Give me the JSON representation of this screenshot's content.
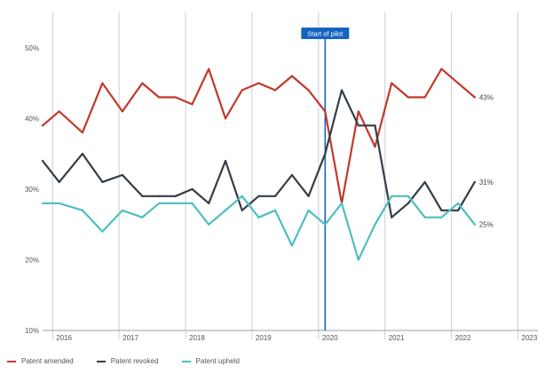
{
  "chart_data": {
    "type": "line",
    "x": [
      2015.85,
      2016.1,
      2016.45,
      2016.75,
      2017.05,
      2017.35,
      2017.6,
      2017.85,
      2018.1,
      2018.35,
      2018.6,
      2018.85,
      2019.1,
      2019.35,
      2019.6,
      2019.85,
      2020.1,
      2020.35,
      2020.6,
      2020.85,
      2021.1,
      2021.35,
      2021.6,
      2021.85,
      2022.1,
      2022.35,
      2022.45
    ],
    "series": [
      {
        "name": "Patent amended",
        "color": "#c0392b",
        "values": [
          39,
          41,
          38,
          45,
          41,
          45,
          43,
          43,
          42,
          47,
          40,
          44,
          45,
          44,
          46,
          44,
          41,
          28,
          41,
          36,
          45,
          43,
          43,
          47,
          45,
          43,
          null
        ],
        "end_label": "43%"
      },
      {
        "name": "Patent revoked",
        "color": "#333d47",
        "values": [
          34,
          31,
          35,
          31,
          32,
          29,
          29,
          29,
          30,
          28,
          34,
          27,
          29,
          29,
          32,
          29,
          35,
          44,
          39,
          39,
          26,
          28,
          31,
          27,
          27,
          31,
          null
        ],
        "end_label": "31%"
      },
      {
        "name": "Patent upheld",
        "color": "#4dbfbf",
        "values": [
          28,
          28,
          27,
          24,
          27,
          26,
          28,
          28,
          28,
          25,
          27,
          29,
          26,
          27,
          22,
          27,
          25,
          28,
          20,
          25,
          29,
          29,
          26,
          26,
          28,
          25,
          null
        ],
        "end_label": "25%"
      }
    ],
    "x_ticks": [
      "2016",
      "2017",
      "2018",
      "2019",
      "2020",
      "2021",
      "2022",
      "2023"
    ],
    "y_ticks": [
      "10%",
      "20%",
      "30%",
      "40%",
      "50%"
    ],
    "ylim": [
      10,
      55
    ],
    "xlim": [
      2015.85,
      2023.3
    ],
    "annotation": {
      "label": "Start of pilot",
      "x": 2020.1,
      "color": "#1565c0"
    },
    "grid": "vertical-year-lines",
    "legend_position": "bottom-left",
    "title": "",
    "xlabel": "",
    "ylabel": ""
  },
  "legend": [
    {
      "label": "Patent amended",
      "color": "#c0392b"
    },
    {
      "label": "Patent revoked",
      "color": "#333d47"
    },
    {
      "label": "Patent upheld",
      "color": "#4dbfbf"
    }
  ]
}
